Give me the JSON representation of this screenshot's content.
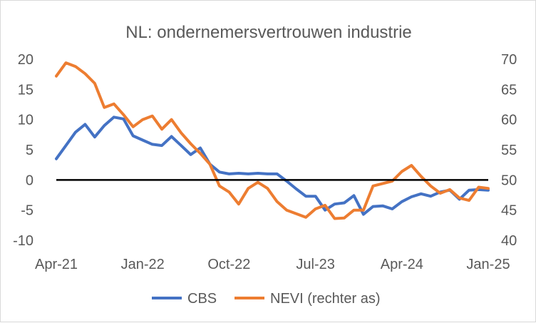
{
  "chart_data": {
    "type": "line",
    "title": "NL: ondernemersvertrouwen industrie",
    "x_tick_labels": [
      "Apr-21",
      "Jan-22",
      "Oct-22",
      "Jul-23",
      "Apr-24",
      "Jan-25"
    ],
    "y_left": {
      "min": -10,
      "max": 20,
      "step": 5,
      "tick_labels": [
        "20",
        "15",
        "10",
        "5",
        "0",
        "-5",
        "-10"
      ]
    },
    "y_right": {
      "min": 40,
      "max": 70,
      "step": 5,
      "tick_labels": [
        "70",
        "65",
        "60",
        "55",
        "50",
        "45",
        "40"
      ]
    },
    "zero_line": 0,
    "x": [
      "2021-04",
      "2021-05",
      "2021-06",
      "2021-07",
      "2021-08",
      "2021-09",
      "2021-10",
      "2021-11",
      "2021-12",
      "2022-01",
      "2022-02",
      "2022-03",
      "2022-04",
      "2022-05",
      "2022-06",
      "2022-07",
      "2022-08",
      "2022-09",
      "2022-10",
      "2022-11",
      "2022-12",
      "2023-01",
      "2023-02",
      "2023-03",
      "2023-04",
      "2023-05",
      "2023-06",
      "2023-07",
      "2023-08",
      "2023-09",
      "2023-10",
      "2023-11",
      "2023-12",
      "2024-01",
      "2024-02",
      "2024-03",
      "2024-04",
      "2024-05",
      "2024-06",
      "2024-07",
      "2024-08",
      "2024-09",
      "2024-10",
      "2024-11",
      "2024-12",
      "2025-01"
    ],
    "series": [
      {
        "name": "CBS",
        "axis": "left",
        "color": "#4472c4",
        "values": [
          3.5,
          5.7,
          7.9,
          9.2,
          7.1,
          9.0,
          10.4,
          10.1,
          7.3,
          6.6,
          5.9,
          5.7,
          7.2,
          5.7,
          4.2,
          5.3,
          2.6,
          1.3,
          1.0,
          1.1,
          1.0,
          1.1,
          1.0,
          1.0,
          -0.2,
          -1.5,
          -2.7,
          -2.7,
          -5.0,
          -4.0,
          -3.8,
          -2.6,
          -5.7,
          -4.4,
          -4.3,
          -4.8,
          -3.6,
          -2.8,
          -2.3,
          -2.7,
          -2.0,
          -1.7,
          -3.2,
          -1.7,
          -1.6,
          -1.7
        ]
      },
      {
        "name": "NEVI (rechter as)",
        "axis": "right",
        "color": "#ed7d31",
        "values": [
          67.2,
          69.4,
          68.8,
          67.6,
          66.0,
          62.0,
          62.6,
          60.8,
          58.8,
          60.0,
          60.6,
          58.4,
          60.0,
          57.8,
          56.0,
          54.4,
          52.6,
          49.0,
          48.0,
          46.0,
          48.6,
          49.6,
          48.6,
          46.4,
          45.0,
          44.4,
          43.8,
          45.2,
          45.8,
          43.6,
          43.7,
          45.0,
          45.0,
          49.0,
          49.4,
          49.8,
          51.4,
          52.4,
          50.6,
          49.0,
          47.8,
          48.4,
          47.0,
          46.6,
          48.8,
          48.6
        ]
      }
    ],
    "legend": [
      "CBS",
      "NEVI (rechter as)"
    ],
    "legend_position": "bottom"
  }
}
